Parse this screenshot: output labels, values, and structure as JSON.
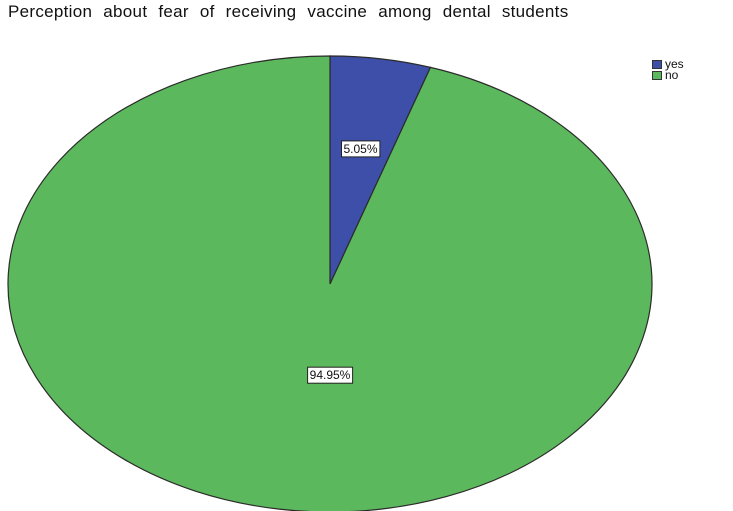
{
  "chart_data": {
    "type": "pie",
    "title": "Perception about fear of receiving vaccine among dental students",
    "categories": [
      "yes",
      "no"
    ],
    "values": [
      5.05,
      94.95
    ],
    "value_labels": [
      "5.05%",
      "94.95%"
    ],
    "colors": [
      "#3d4fa8",
      "#5cb85c"
    ],
    "legend": {
      "placement": "top-right",
      "entries": [
        {
          "label": "yes",
          "color": "#3d4fa8"
        },
        {
          "label": "no",
          "color": "#5cb85c"
        }
      ]
    },
    "start": "top",
    "direction": "clockwise"
  }
}
